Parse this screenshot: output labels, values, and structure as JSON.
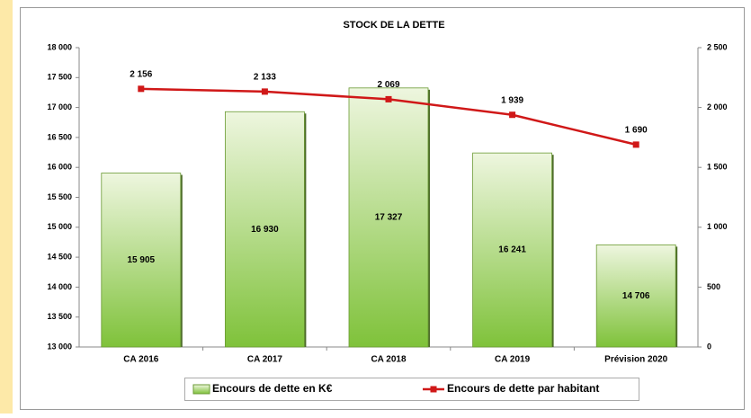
{
  "chart_data": {
    "type": "combo",
    "title": "STOCK DE LA DETTE",
    "categories": [
      "CA 2016",
      "CA 2017",
      "CA 2018",
      "CA 2019",
      "Prévision 2020"
    ],
    "series": [
      {
        "name": "Encours de dette en K€",
        "type": "bar",
        "axis": "y",
        "color": "#8fc64f",
        "values": [
          15905,
          16930,
          17327,
          16241,
          14706
        ],
        "value_labels": [
          "15 905",
          "16 930",
          "17 327",
          "16 241",
          "14 706"
        ]
      },
      {
        "name": "Encours de dette par habitant",
        "type": "line",
        "axis": "y2",
        "color": "#d01818",
        "values": [
          2156,
          2133,
          2069,
          1939,
          1690
        ],
        "value_labels": [
          "2 156",
          "2 133",
          "2 069",
          "1 939",
          "1 690"
        ]
      }
    ],
    "ylim": [
      13000,
      18000
    ],
    "yticks": [
      {
        "value": 13000,
        "label": "13 000"
      },
      {
        "value": 13500,
        "label": "13 500"
      },
      {
        "value": 14000,
        "label": "14 000"
      },
      {
        "value": 14500,
        "label": "14 500"
      },
      {
        "value": 15000,
        "label": "15 000"
      },
      {
        "value": 15500,
        "label": "15 500"
      },
      {
        "value": 16000,
        "label": "16 000"
      },
      {
        "value": 16500,
        "label": "16 500"
      },
      {
        "value": 17000,
        "label": "17 000"
      },
      {
        "value": 17500,
        "label": "17 500"
      },
      {
        "value": 18000,
        "label": "18 000"
      }
    ],
    "y2lim": [
      0,
      2500
    ],
    "y2ticks": [
      0,
      500,
      {
        "value": 1000,
        "label": "1 000"
      },
      {
        "value": 1500,
        "label": "1 500"
      },
      {
        "value": 2000,
        "label": "2 000"
      },
      {
        "value": 2500,
        "label": "2 500"
      }
    ],
    "legend": "bottom",
    "grid": false
  }
}
